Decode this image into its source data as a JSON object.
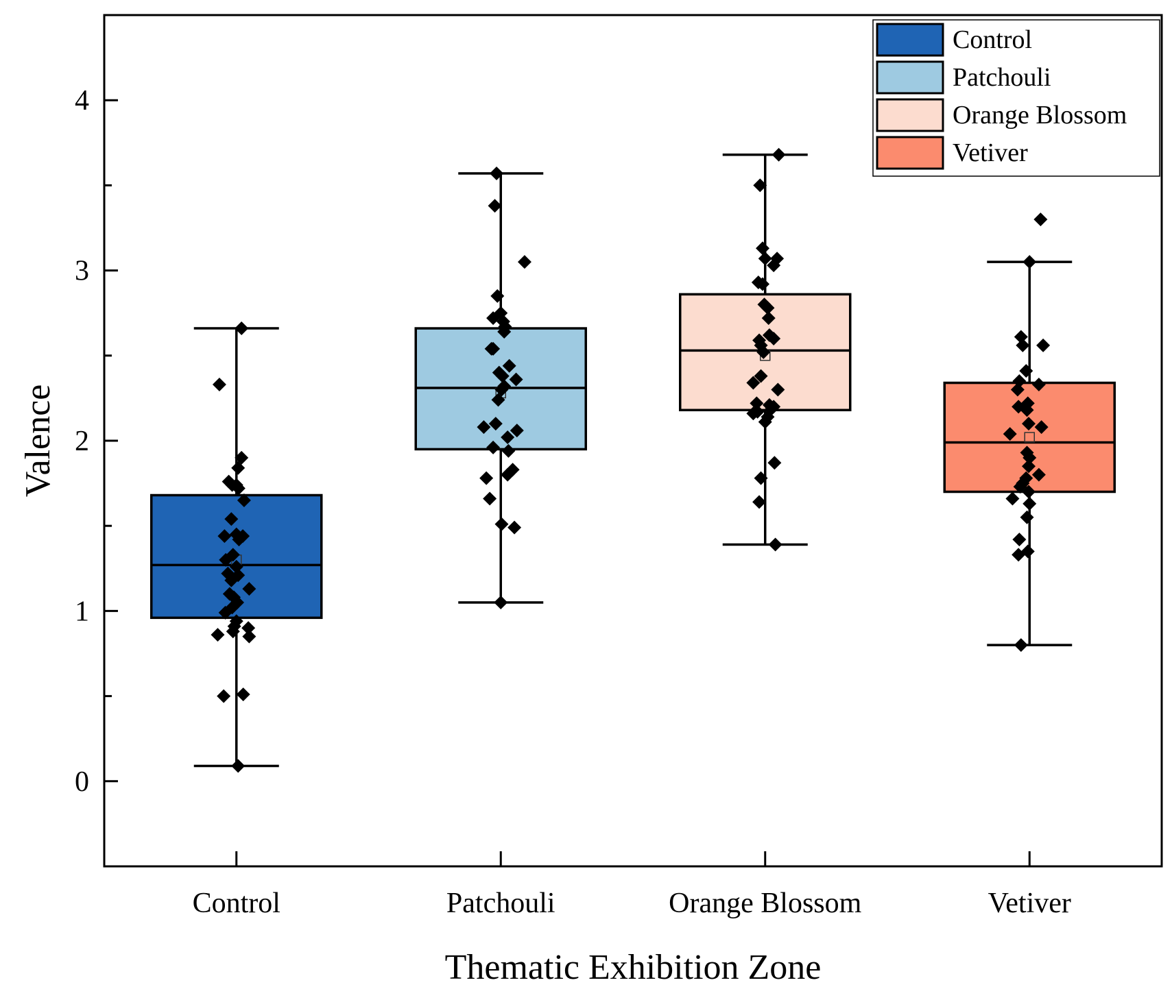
{
  "chart_data": {
    "type": "box",
    "title": "",
    "xlabel": "Thematic Exhibition Zone",
    "ylabel": "Valence",
    "ylim": [
      -0.5,
      4.5
    ],
    "yticks": [
      0,
      1,
      2,
      3,
      4
    ],
    "y_minor_ticks": [
      0.5,
      1.5,
      2.5,
      3.5
    ],
    "grid": false,
    "legend_position": "top-right",
    "categories": [
      "Control",
      "Patchouli",
      "Orange Blossom",
      "Vetiver"
    ],
    "series": [
      {
        "name": "Control",
        "color": "#1f64b4",
        "q1": 0.96,
        "median": 1.27,
        "q3": 1.68,
        "mean": 1.3,
        "whisker_low": 0.09,
        "whisker_high": 2.66,
        "points": [
          [
            2.66,
            0.12
          ],
          [
            2.33,
            -0.4
          ],
          [
            1.9,
            0.12
          ],
          [
            1.84,
            0.04
          ],
          [
            1.76,
            -0.18
          ],
          [
            1.74,
            0.0
          ],
          [
            1.74,
            -0.1
          ],
          [
            1.72,
            0.05
          ],
          [
            1.65,
            0.18
          ],
          [
            1.54,
            -0.12
          ],
          [
            1.45,
            0.0
          ],
          [
            1.44,
            -0.28
          ],
          [
            1.44,
            0.15
          ],
          [
            1.42,
            0.06
          ],
          [
            1.33,
            -0.08
          ],
          [
            1.3,
            -0.25
          ],
          [
            1.26,
            0.0
          ],
          [
            1.22,
            -0.2
          ],
          [
            1.21,
            0.04
          ],
          [
            1.18,
            -0.12
          ],
          [
            1.13,
            0.3
          ],
          [
            1.1,
            -0.16
          ],
          [
            1.08,
            -0.06
          ],
          [
            1.05,
            0.02
          ],
          [
            1.02,
            -0.1
          ],
          [
            0.99,
            -0.26
          ],
          [
            0.94,
            0.0
          ],
          [
            0.91,
            -0.05
          ],
          [
            0.9,
            0.28
          ],
          [
            0.88,
            -0.08
          ],
          [
            0.86,
            -0.44
          ],
          [
            0.85,
            0.3
          ],
          [
            0.51,
            0.16
          ],
          [
            0.5,
            -0.3
          ],
          [
            0.09,
            0.04
          ]
        ]
      },
      {
        "name": "Patchouli",
        "color": "#9ecae1",
        "q1": 1.95,
        "median": 2.31,
        "q3": 2.66,
        "mean": 2.28,
        "whisker_low": 1.05,
        "whisker_high": 3.57,
        "points": [
          [
            3.57,
            -0.1
          ],
          [
            3.38,
            -0.14
          ],
          [
            3.05,
            0.56
          ],
          [
            2.85,
            -0.08
          ],
          [
            2.75,
            0.0
          ],
          [
            2.72,
            -0.18
          ],
          [
            2.7,
            0.06
          ],
          [
            2.67,
            0.1
          ],
          [
            2.64,
            0.08
          ],
          [
            2.54,
            -0.18
          ],
          [
            2.54,
            -0.22
          ],
          [
            2.44,
            0.2
          ],
          [
            2.4,
            -0.04
          ],
          [
            2.38,
            0.04
          ],
          [
            2.36,
            0.36
          ],
          [
            2.32,
            0.08
          ],
          [
            2.3,
            0.02
          ],
          [
            2.24,
            -0.06
          ],
          [
            2.1,
            -0.12
          ],
          [
            2.08,
            -0.4
          ],
          [
            2.06,
            0.38
          ],
          [
            2.02,
            0.16
          ],
          [
            1.96,
            -0.18
          ],
          [
            1.94,
            0.18
          ],
          [
            1.83,
            0.28
          ],
          [
            1.8,
            0.16
          ],
          [
            1.78,
            -0.34
          ],
          [
            1.66,
            -0.26
          ],
          [
            1.51,
            0.02
          ],
          [
            1.49,
            0.32
          ],
          [
            1.05,
            0.0
          ]
        ]
      },
      {
        "name": "Orange Blossom",
        "color": "#fcdccf",
        "q1": 2.18,
        "median": 2.53,
        "q3": 2.86,
        "mean": 2.5,
        "whisker_low": 1.39,
        "whisker_high": 3.68,
        "points": [
          [
            3.68,
            0.32
          ],
          [
            3.5,
            -0.12
          ],
          [
            3.13,
            -0.06
          ],
          [
            3.07,
            0.28
          ],
          [
            3.07,
            0.0
          ],
          [
            3.03,
            0.2
          ],
          [
            2.93,
            -0.16
          ],
          [
            2.92,
            -0.06
          ],
          [
            2.8,
            -0.02
          ],
          [
            2.78,
            0.06
          ],
          [
            2.72,
            0.08
          ],
          [
            2.62,
            0.1
          ],
          [
            2.6,
            0.2
          ],
          [
            2.59,
            -0.14
          ],
          [
            2.56,
            -0.1
          ],
          [
            2.52,
            -0.04
          ],
          [
            2.38,
            -0.1
          ],
          [
            2.34,
            -0.28
          ],
          [
            2.3,
            0.3
          ],
          [
            2.22,
            -0.2
          ],
          [
            2.21,
            0.1
          ],
          [
            2.2,
            0.2
          ],
          [
            2.19,
            0.16
          ],
          [
            2.17,
            -0.18
          ],
          [
            2.16,
            -0.28
          ],
          [
            2.14,
            0.06
          ],
          [
            2.11,
            0.0
          ],
          [
            1.87,
            0.22
          ],
          [
            1.78,
            -0.1
          ],
          [
            1.64,
            -0.14
          ],
          [
            1.39,
            0.24
          ]
        ]
      },
      {
        "name": "Vetiver",
        "color": "#fb8b6e",
        "q1": 1.7,
        "median": 1.99,
        "q3": 2.34,
        "mean": 2.02,
        "whisker_low": 0.8,
        "whisker_high": 3.05,
        "points": [
          [
            3.3,
            0.26
          ],
          [
            3.05,
            0.0
          ],
          [
            2.61,
            -0.2
          ],
          [
            2.56,
            0.32
          ],
          [
            2.56,
            -0.16
          ],
          [
            2.41,
            -0.08
          ],
          [
            2.35,
            -0.24
          ],
          [
            2.33,
            0.22
          ],
          [
            2.3,
            -0.28
          ],
          [
            2.22,
            -0.04
          ],
          [
            2.2,
            -0.26
          ],
          [
            2.18,
            -0.06
          ],
          [
            2.1,
            -0.02
          ],
          [
            2.08,
            0.28
          ],
          [
            2.04,
            -0.46
          ],
          [
            1.93,
            -0.06
          ],
          [
            1.9,
            0.0
          ],
          [
            1.85,
            -0.02
          ],
          [
            1.8,
            0.22
          ],
          [
            1.78,
            -0.08
          ],
          [
            1.75,
            -0.16
          ],
          [
            1.73,
            -0.22
          ],
          [
            1.7,
            -0.02
          ],
          [
            1.66,
            -0.4
          ],
          [
            1.63,
            0.0
          ],
          [
            1.55,
            -0.06
          ],
          [
            1.42,
            -0.24
          ],
          [
            1.35,
            -0.04
          ],
          [
            1.33,
            -0.26
          ],
          [
            0.8,
            -0.2
          ]
        ]
      }
    ]
  }
}
